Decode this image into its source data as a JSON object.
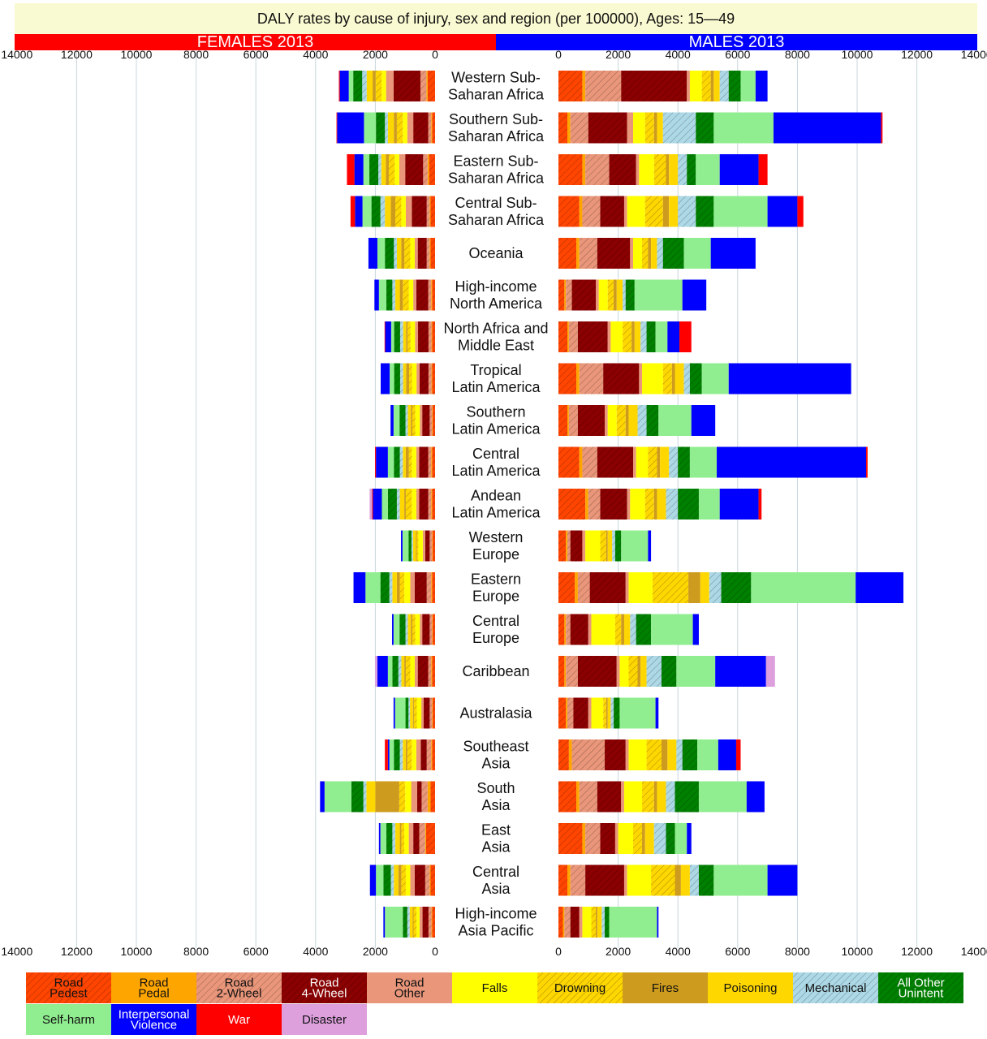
{
  "title": "DALY rates by cause of injury, sex and region (per 100000), Ages: 15—49",
  "females_label": "FEMALES 2013",
  "males_label": "MALES 2013",
  "colors": {
    "title_bg": "#fafad2",
    "females": "#ff0000",
    "males": "#0000ff"
  },
  "chart_data": {
    "type": "bar",
    "orientation": "horizontal-stacked-butterfly",
    "title": "DALY rates by cause of injury, sex and region (per 100000), Ages: 15—49",
    "unit": "per 100000",
    "xlim_females": [
      14000,
      0
    ],
    "xlim_males": [
      0,
      14000
    ],
    "tick_labels": [
      "14000",
      "12000",
      "10000",
      "8000",
      "6000",
      "4000",
      "2000",
      "0"
    ],
    "tick_labels_males": [
      "0",
      "2000",
      "4000",
      "6000",
      "8000",
      "10000",
      "12000",
      "14000"
    ],
    "grid": "vertical",
    "categories": [
      "Western Sub-\nSaharan Africa",
      "Southern Sub-\nSaharan Africa",
      "Eastern Sub-\nSaharan Africa",
      "Central Sub-\nSaharan Africa",
      "Oceania",
      "High-income\nNorth America",
      "North Africa and\nMiddle East",
      "Tropical\nLatin America",
      "Southern\nLatin America",
      "Central\nLatin America",
      "Andean\nLatin America",
      "Western\nEurope",
      "Eastern\nEurope",
      "Central\nEurope",
      "Caribbean",
      "Australasia",
      "Southeast\nAsia",
      "South\nAsia",
      "East\nAsia",
      "Central\nAsia",
      "High-income\nAsia Pacific"
    ],
    "causes": [
      {
        "name": "Road\nPedest",
        "color": "#ff4500",
        "hatch": true
      },
      {
        "name": "Road\nPedal",
        "color": "#ffa500",
        "hatch": false
      },
      {
        "name": "Road\n2-Wheel",
        "color": "#e9967a",
        "hatch": true
      },
      {
        "name": "Road\n4-Wheel",
        "color": "#8b0000",
        "hatch": true
      },
      {
        "name": "Road\nOther",
        "color": "#e9967a",
        "hatch": false
      },
      {
        "name": "Falls",
        "color": "#ffff00",
        "hatch": false
      },
      {
        "name": "Drowning",
        "color": "#ffd700",
        "hatch": true
      },
      {
        "name": "Fires",
        "color": "#cd9b1d",
        "hatch": false
      },
      {
        "name": "Poisoning",
        "color": "#ffd700",
        "hatch": false
      },
      {
        "name": "Mechanical",
        "color": "#add8e6",
        "hatch": true
      },
      {
        "name": "All Other\nUnintent",
        "color": "#008000",
        "hatch": true
      },
      {
        "name": "Self-harm",
        "color": "#90ee90",
        "hatch": false
      },
      {
        "name": "Interpersonal\nViolence",
        "color": "#0000ff",
        "hatch": false
      },
      {
        "name": "War",
        "color": "#ff0000",
        "hatch": false
      },
      {
        "name": "Disaster",
        "color": "#dda0dd",
        "hatch": false
      }
    ],
    "females": [
      [
        250,
        40,
        200,
        900,
        250,
        150,
        200,
        100,
        200,
        150,
        300,
        150,
        300,
        30,
        0
      ],
      [
        100,
        30,
        100,
        500,
        200,
        150,
        200,
        100,
        200,
        100,
        300,
        400,
        900,
        20,
        0
      ],
      [
        200,
        50,
        150,
        600,
        200,
        150,
        200,
        100,
        150,
        100,
        300,
        200,
        300,
        250,
        0
      ],
      [
        150,
        30,
        100,
        500,
        200,
        150,
        200,
        150,
        200,
        150,
        300,
        300,
        250,
        150,
        0
      ],
      [
        150,
        30,
        100,
        300,
        100,
        150,
        200,
        100,
        150,
        100,
        300,
        250,
        300,
        0,
        0
      ],
      [
        100,
        30,
        100,
        400,
        100,
        150,
        200,
        100,
        150,
        100,
        200,
        250,
        150,
        0,
        0
      ],
      [
        100,
        20,
        100,
        350,
        100,
        150,
        100,
        50,
        100,
        100,
        200,
        100,
        200,
        20,
        0
      ],
      [
        100,
        20,
        100,
        300,
        100,
        150,
        100,
        100,
        100,
        100,
        200,
        150,
        300,
        0,
        0
      ],
      [
        80,
        20,
        80,
        250,
        80,
        150,
        100,
        50,
        100,
        80,
        200,
        200,
        100,
        0,
        0
      ],
      [
        100,
        30,
        100,
        300,
        100,
        150,
        100,
        100,
        100,
        100,
        200,
        200,
        400,
        30,
        0
      ],
      [
        100,
        30,
        100,
        300,
        100,
        150,
        200,
        50,
        150,
        100,
        300,
        200,
        300,
        30,
        80
      ],
      [
        80,
        20,
        80,
        150,
        80,
        150,
        50,
        30,
        100,
        50,
        100,
        200,
        50,
        0,
        0
      ],
      [
        100,
        30,
        150,
        400,
        150,
        200,
        150,
        100,
        150,
        100,
        300,
        500,
        400,
        0,
        0
      ],
      [
        80,
        20,
        80,
        250,
        80,
        150,
        100,
        50,
        100,
        80,
        200,
        200,
        50,
        0,
        0
      ],
      [
        100,
        30,
        100,
        350,
        100,
        150,
        150,
        50,
        100,
        100,
        200,
        150,
        350,
        0,
        80
      ],
      [
        80,
        20,
        80,
        200,
        80,
        150,
        100,
        30,
        100,
        50,
        100,
        350,
        50,
        0,
        0
      ],
      [
        100,
        30,
        150,
        200,
        150,
        150,
        150,
        50,
        100,
        100,
        200,
        150,
        50,
        100,
        0
      ],
      [
        150,
        100,
        200,
        150,
        200,
        200,
        200,
        800,
        300,
        100,
        400,
        900,
        150,
        0,
        0
      ],
      [
        300,
        30,
        200,
        200,
        150,
        150,
        100,
        50,
        150,
        100,
        200,
        200,
        50,
        0,
        0
      ],
      [
        150,
        30,
        150,
        350,
        150,
        150,
        150,
        100,
        150,
        100,
        250,
        250,
        200,
        0,
        0
      ],
      [
        100,
        20,
        100,
        200,
        100,
        100,
        100,
        30,
        100,
        80,
        150,
        600,
        50,
        0,
        0
      ]
    ],
    "males": [
      [
        800,
        100,
        1200,
        2200,
        100,
        400,
        300,
        100,
        200,
        300,
        400,
        500,
        400,
        0,
        0
      ],
      [
        300,
        100,
        600,
        1300,
        200,
        400,
        300,
        100,
        200,
        1100,
        600,
        2000,
        3600,
        50,
        0
      ],
      [
        800,
        100,
        800,
        900,
        100,
        500,
        400,
        100,
        300,
        300,
        300,
        800,
        1300,
        300,
        0
      ],
      [
        700,
        100,
        600,
        800,
        100,
        600,
        600,
        200,
        300,
        600,
        600,
        1800,
        1000,
        200,
        0
      ],
      [
        600,
        100,
        600,
        1100,
        100,
        300,
        200,
        100,
        200,
        200,
        700,
        900,
        1500,
        0,
        0
      ],
      [
        200,
        50,
        200,
        800,
        100,
        300,
        200,
        100,
        200,
        100,
        300,
        1600,
        800,
        0,
        0
      ],
      [
        300,
        50,
        300,
        1000,
        100,
        400,
        300,
        100,
        200,
        200,
        300,
        400,
        400,
        400,
        0
      ],
      [
        600,
        100,
        800,
        1200,
        100,
        700,
        300,
        100,
        300,
        200,
        400,
        900,
        4100,
        0,
        0
      ],
      [
        300,
        50,
        300,
        900,
        100,
        300,
        300,
        100,
        300,
        300,
        400,
        1100,
        800,
        0,
        0
      ],
      [
        700,
        100,
        500,
        1200,
        100,
        400,
        300,
        100,
        300,
        300,
        400,
        900,
        5000,
        50,
        0
      ],
      [
        900,
        100,
        400,
        900,
        100,
        500,
        300,
        100,
        300,
        400,
        700,
        700,
        1300,
        100,
        0
      ],
      [
        250,
        50,
        100,
        400,
        100,
        500,
        200,
        50,
        150,
        100,
        200,
        900,
        100,
        0,
        0
      ],
      [
        550,
        100,
        400,
        1200,
        100,
        800,
        1200,
        400,
        300,
        400,
        1000,
        3500,
        1600,
        0,
        0
      ],
      [
        200,
        50,
        150,
        600,
        100,
        800,
        200,
        100,
        200,
        200,
        500,
        1400,
        200,
        0,
        0
      ],
      [
        200,
        50,
        400,
        1300,
        100,
        300,
        300,
        100,
        200,
        500,
        500,
        1300,
        1700,
        0,
        300
      ],
      [
        250,
        50,
        200,
        500,
        100,
        400,
        100,
        50,
        100,
        100,
        200,
        1200,
        100,
        0,
        0
      ],
      [
        350,
        100,
        1100,
        700,
        100,
        600,
        500,
        200,
        300,
        200,
        500,
        700,
        600,
        150,
        0
      ],
      [
        600,
        100,
        600,
        800,
        100,
        600,
        400,
        100,
        300,
        300,
        800,
        1600,
        600,
        0,
        0
      ],
      [
        800,
        100,
        500,
        500,
        100,
        500,
        300,
        100,
        300,
        400,
        300,
        400,
        150,
        0,
        0
      ],
      [
        300,
        100,
        500,
        1300,
        100,
        800,
        800,
        200,
        300,
        300,
        500,
        1800,
        1000,
        0,
        0
      ],
      [
        150,
        50,
        200,
        300,
        100,
        300,
        150,
        50,
        150,
        100,
        150,
        1600,
        50,
        0,
        0
      ]
    ]
  }
}
